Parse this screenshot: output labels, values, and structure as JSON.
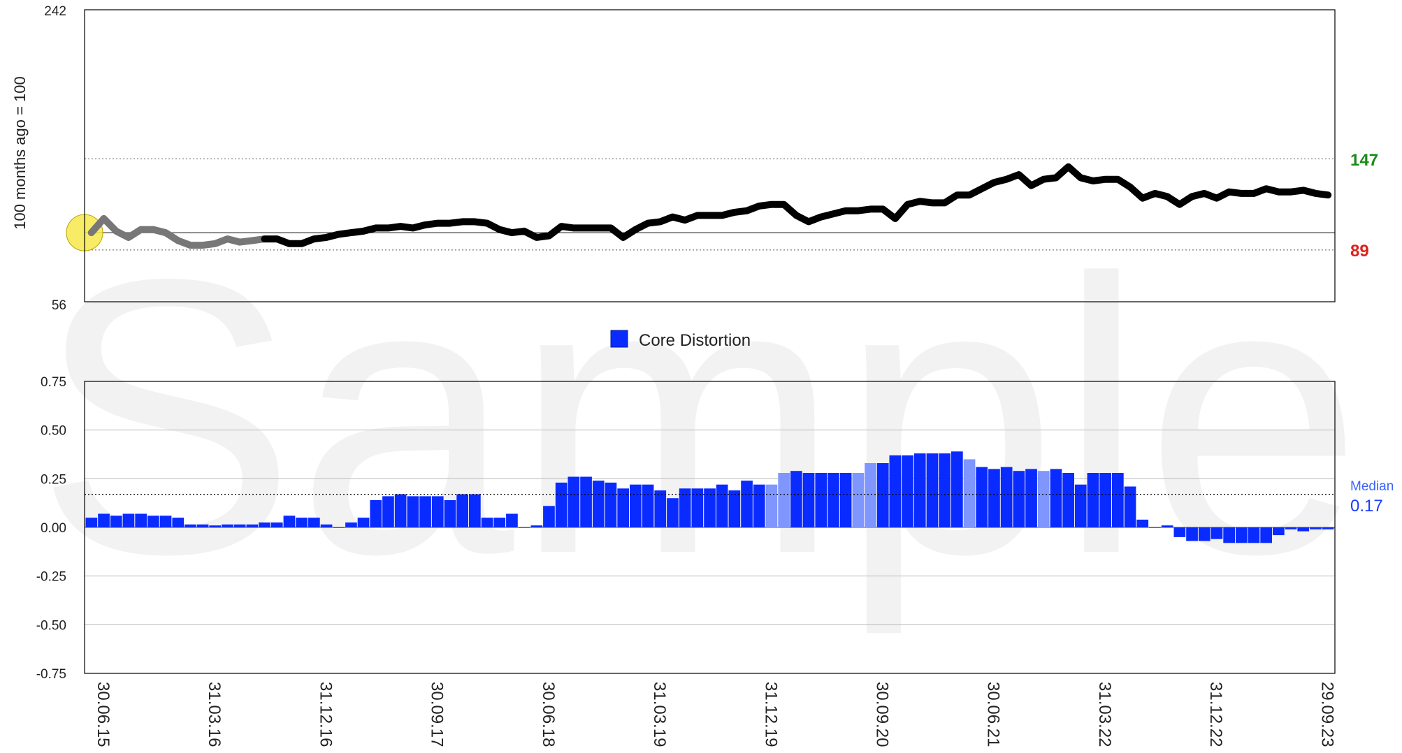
{
  "watermark": "Sample",
  "colors": {
    "bar": "#0a2bff",
    "bar_faded": "#7f96ff",
    "line": "#000000",
    "line_faded": "#777777",
    "upper_level": "#1a8a1a",
    "lower_level": "#e0201a",
    "median": "#1a3cff",
    "start_marker": "#f7e84a"
  },
  "chart_data": [
    {
      "type": "line",
      "ylabel": "100 months ago = 100",
      "ylim": [
        56,
        242
      ],
      "ytick_labels": [
        "242",
        "56"
      ],
      "start_marker": {
        "x_index": 0,
        "y": 100
      },
      "reference_lines": [
        {
          "value": 147,
          "label": "147",
          "color_key": "upper_level"
        },
        {
          "value": 100,
          "label": "",
          "color_key": "line"
        },
        {
          "value": 89,
          "label": "89",
          "color_key": "lower_level"
        }
      ],
      "faded_until_index": 14,
      "series": [
        {
          "values": [
            100,
            109,
            101,
            97,
            102,
            102,
            100,
            95,
            92,
            92,
            93,
            96,
            94,
            95,
            96,
            96,
            93,
            93,
            96,
            97,
            99,
            100,
            101,
            103,
            103,
            104,
            103,
            105,
            106,
            106,
            107,
            107,
            106,
            102,
            100,
            101,
            97,
            98,
            104,
            103,
            103,
            103,
            103,
            97,
            102,
            106,
            107,
            110,
            108,
            111,
            111,
            111,
            113,
            114,
            117,
            118,
            118,
            111,
            107,
            110,
            112,
            114,
            114,
            115,
            115,
            109,
            118,
            120,
            119,
            119,
            124,
            124,
            128,
            132,
            134,
            137,
            130,
            134,
            135,
            142,
            135,
            133,
            134,
            134,
            129,
            122,
            125,
            123,
            118,
            123,
            125,
            122,
            126,
            125,
            125,
            128,
            126,
            126,
            127,
            125,
            124
          ]
        }
      ]
    },
    {
      "type": "bar",
      "legend": [
        "Core Distortion"
      ],
      "ylim": [
        -0.75,
        0.75
      ],
      "ytick_labels": [
        "0.75",
        "0.50",
        "0.25",
        "0.00",
        "-0.25",
        "-0.50",
        "-0.75"
      ],
      "median": {
        "label": "Median",
        "value": 0.17,
        "value_label": "0.17"
      },
      "x_labels": [
        "30.06.15",
        "31.03.16",
        "31.12.16",
        "30.09.17",
        "30.06.18",
        "31.03.19",
        "31.12.19",
        "30.09.20",
        "30.06.21",
        "31.03.22",
        "31.12.22",
        "29.09.23"
      ],
      "x_label_indices": [
        0,
        9,
        18,
        27,
        36,
        45,
        54,
        63,
        72,
        81,
        90,
        99
      ],
      "faded_indices": [
        55,
        56,
        62,
        63,
        71,
        77
      ],
      "series": [
        {
          "name": "Core Distortion",
          "values": [
            0.05,
            0.07,
            0.06,
            0.07,
            0.07,
            0.06,
            0.06,
            0.05,
            0.015,
            0.015,
            0.01,
            0.015,
            0.015,
            0.015,
            0.025,
            0.025,
            0.06,
            0.05,
            0.05,
            0.015,
            0.0,
            0.025,
            0.05,
            0.14,
            0.16,
            0.17,
            0.16,
            0.16,
            0.16,
            0.14,
            0.17,
            0.17,
            0.05,
            0.05,
            0.07,
            0.0,
            0.01,
            0.11,
            0.23,
            0.26,
            0.26,
            0.24,
            0.23,
            0.2,
            0.22,
            0.22,
            0.19,
            0.15,
            0.2,
            0.2,
            0.2,
            0.22,
            0.19,
            0.24,
            0.22,
            0.22,
            0.28,
            0.29,
            0.28,
            0.28,
            0.28,
            0.28,
            0.28,
            0.33,
            0.33,
            0.37,
            0.37,
            0.38,
            0.38,
            0.38,
            0.39,
            0.35,
            0.31,
            0.3,
            0.31,
            0.29,
            0.3,
            0.29,
            0.3,
            0.28,
            0.22,
            0.28,
            0.28,
            0.28,
            0.21,
            0.04,
            0.0,
            0.01,
            -0.05,
            -0.07,
            -0.07,
            -0.06,
            -0.08,
            -0.08,
            -0.08,
            -0.08,
            -0.04,
            -0.01,
            -0.02,
            -0.01,
            -0.01
          ]
        }
      ]
    }
  ]
}
